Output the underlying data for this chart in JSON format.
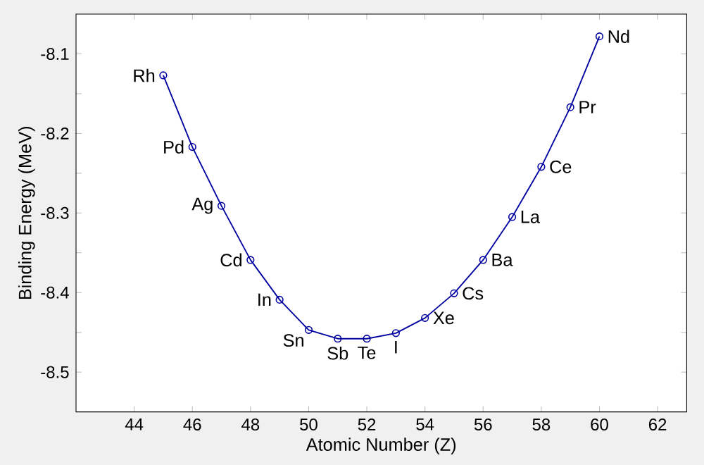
{
  "chart_data": {
    "type": "line",
    "xlabel": "Atomic Number (Z)",
    "ylabel": "Binding Energy (MeV)",
    "x": [
      45,
      46,
      47,
      48,
      49,
      50,
      51,
      52,
      53,
      54,
      55,
      56,
      57,
      58,
      59,
      60
    ],
    "series": [
      {
        "color": "#0000a0",
        "values": [
          -8.127,
          -8.217,
          -8.291,
          -8.359,
          -8.409,
          -8.447,
          -8.458,
          -8.458,
          -8.451,
          -8.432,
          -8.401,
          -8.359,
          -8.305,
          -8.242,
          -8.167,
          -8.078
        ]
      }
    ],
    "marker": "circle",
    "line_style": "solid",
    "xlim": [
      42,
      63
    ],
    "ylim": [
      -8.55,
      -8.05
    ],
    "xticks": [
      44,
      46,
      48,
      50,
      52,
      54,
      56,
      58,
      60,
      62
    ],
    "yticks": [
      {
        "value": -8.5,
        "label": "-8.5"
      },
      {
        "value": -8.45,
        "label": null
      },
      {
        "value": -8.4,
        "label": "-8.4"
      },
      {
        "value": -8.35,
        "label": null
      },
      {
        "value": -8.3,
        "label": "-8.3"
      },
      {
        "value": -8.25,
        "label": null
      },
      {
        "value": -8.2,
        "label": "-8.2"
      },
      {
        "value": -8.15,
        "label": null
      },
      {
        "value": -8.1,
        "label": "-8.1"
      }
    ],
    "annotations": [
      {
        "text": "Rh",
        "x": 45,
        "y": -8.127
      },
      {
        "text": "Pd",
        "x": 46,
        "y": -8.217
      },
      {
        "text": "Ag",
        "x": 47,
        "y": -8.291
      },
      {
        "text": "Cd",
        "x": 48,
        "y": -8.359
      },
      {
        "text": "In",
        "x": 49,
        "y": -8.409
      },
      {
        "text": "Sn",
        "x": 50,
        "y": -8.447
      },
      {
        "text": "Sb",
        "x": 51,
        "y": -8.458
      },
      {
        "text": "Te",
        "x": 52,
        "y": -8.458
      },
      {
        "text": "I",
        "x": 53,
        "y": -8.451
      },
      {
        "text": "Xe",
        "x": 54,
        "y": -8.432
      },
      {
        "text": "Cs",
        "x": 55,
        "y": -8.401
      },
      {
        "text": "Ba",
        "x": 56,
        "y": -8.359
      },
      {
        "text": "La",
        "x": 57,
        "y": -8.305
      },
      {
        "text": "Ce",
        "x": 58,
        "y": -8.242
      },
      {
        "text": "Pr",
        "x": 59,
        "y": -8.167
      },
      {
        "text": "Nd",
        "x": 60,
        "y": -8.078
      }
    ]
  }
}
